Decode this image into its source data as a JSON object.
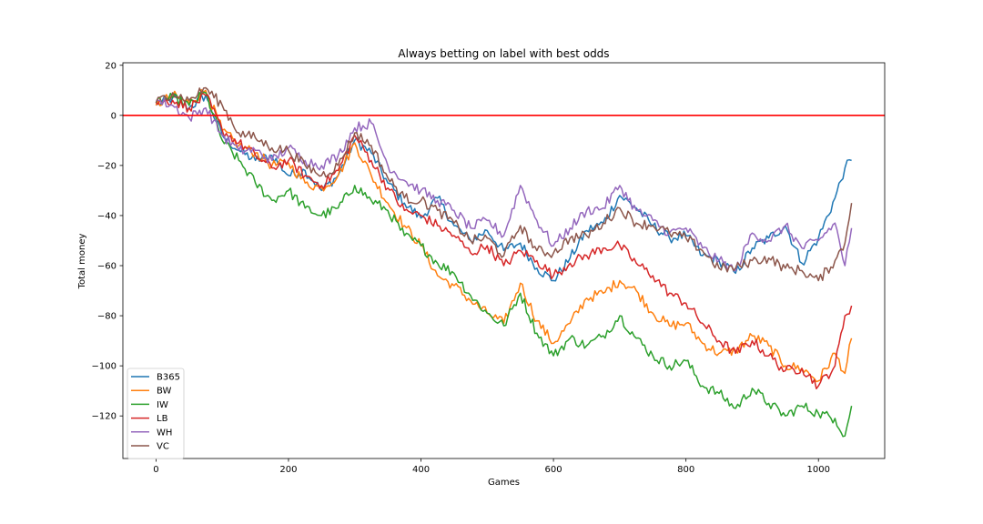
{
  "chart_data": {
    "type": "line",
    "title": "Always betting on label with best odds",
    "xlabel": "Games",
    "ylabel": "Total money",
    "xlim": [
      -50,
      1100
    ],
    "ylim": [
      -137,
      21
    ],
    "xticks": [
      0,
      200,
      400,
      600,
      800,
      1000
    ],
    "yticks": [
      20,
      0,
      -20,
      -40,
      -60,
      -80,
      -100,
      -120
    ],
    "grid": false,
    "legend_position": "lower-left",
    "reference_line": {
      "y": 0,
      "color": "#ff0000"
    },
    "x": [
      0,
      25,
      50,
      75,
      100,
      125,
      150,
      175,
      200,
      225,
      250,
      275,
      300,
      325,
      350,
      375,
      400,
      425,
      450,
      475,
      500,
      525,
      550,
      575,
      600,
      625,
      650,
      675,
      700,
      725,
      750,
      775,
      800,
      825,
      850,
      875,
      900,
      925,
      950,
      975,
      1000,
      1025,
      1040,
      1050
    ],
    "series": [
      {
        "name": "B365",
        "color": "#1f77b4",
        "values": [
          4,
          7,
          3,
          8,
          -8,
          -14,
          -18,
          -16,
          -24,
          -22,
          -30,
          -24,
          -10,
          -15,
          -27,
          -35,
          -41,
          -33,
          -44,
          -50,
          -46,
          -54,
          -51,
          -61,
          -66,
          -57,
          -46,
          -43,
          -32,
          -37,
          -44,
          -49,
          -48,
          -56,
          -58,
          -63,
          -53,
          -49,
          -44,
          -59,
          -49,
          -33,
          -21,
          -18
        ]
      },
      {
        "name": "BW",
        "color": "#ff7f0e",
        "values": [
          4,
          8,
          5,
          10,
          -6,
          -12,
          -15,
          -20,
          -19,
          -27,
          -29,
          -24,
          -11,
          -24,
          -35,
          -44,
          -52,
          -64,
          -68,
          -74,
          -79,
          -83,
          -67,
          -82,
          -91,
          -83,
          -73,
          -71,
          -66,
          -70,
          -79,
          -84,
          -83,
          -91,
          -95,
          -94,
          -88,
          -92,
          -100,
          -101,
          -106,
          -95,
          -103,
          -89
        ]
      },
      {
        "name": "IW",
        "color": "#2ca02c",
        "values": [
          5,
          7,
          4,
          9,
          -10,
          -18,
          -27,
          -34,
          -30,
          -37,
          -40,
          -37,
          -28,
          -34,
          -38,
          -48,
          -52,
          -59,
          -63,
          -72,
          -79,
          -84,
          -71,
          -87,
          -96,
          -89,
          -92,
          -88,
          -80,
          -89,
          -96,
          -100,
          -98,
          -108,
          -111,
          -117,
          -109,
          -115,
          -120,
          -116,
          -119,
          -121,
          -128,
          -116
        ]
      },
      {
        "name": "LB",
        "color": "#d62728",
        "values": [
          5,
          6,
          3,
          8,
          -6,
          -11,
          -16,
          -21,
          -18,
          -24,
          -28,
          -22,
          -8,
          -18,
          -29,
          -38,
          -40,
          -44,
          -48,
          -55,
          -52,
          -60,
          -54,
          -58,
          -64,
          -59,
          -56,
          -53,
          -52,
          -59,
          -64,
          -71,
          -75,
          -83,
          -90,
          -95,
          -90,
          -96,
          -102,
          -101,
          -108,
          -100,
          -80,
          -76
        ]
      },
      {
        "name": "WH",
        "color": "#9467bd",
        "values": [
          6,
          4,
          -1,
          3,
          -8,
          -14,
          -14,
          -18,
          -13,
          -18,
          -20,
          -16,
          -5,
          -3,
          -20,
          -26,
          -30,
          -34,
          -38,
          -45,
          -42,
          -48,
          -28,
          -42,
          -52,
          -45,
          -38,
          -37,
          -28,
          -38,
          -42,
          -47,
          -45,
          -53,
          -58,
          -62,
          -47,
          -50,
          -44,
          -53,
          -50,
          -43,
          -60,
          -45
        ]
      },
      {
        "name": "VC",
        "color": "#8c564b",
        "values": [
          5,
          9,
          6,
          11,
          4,
          -7,
          -9,
          -13,
          -14,
          -20,
          -24,
          -20,
          -7,
          -12,
          -25,
          -33,
          -34,
          -38,
          -43,
          -50,
          -49,
          -56,
          -44,
          -54,
          -55,
          -49,
          -48,
          -43,
          -37,
          -43,
          -44,
          -47,
          -49,
          -54,
          -61,
          -61,
          -58,
          -57,
          -61,
          -62,
          -66,
          -58,
          -51,
          -35
        ]
      }
    ]
  }
}
